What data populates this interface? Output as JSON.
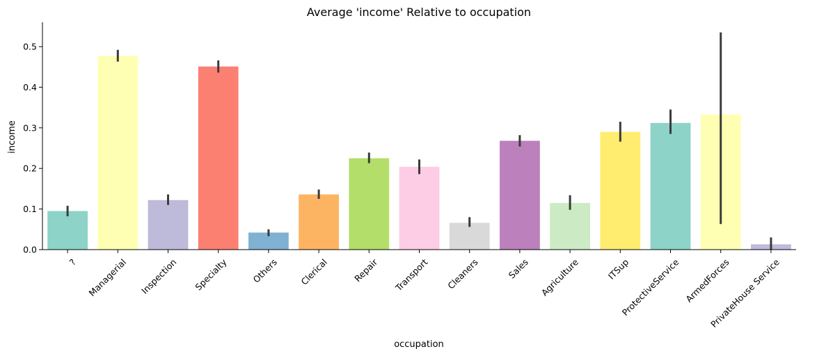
{
  "chart_data": {
    "type": "bar",
    "title": "Average 'income' Relative to occupation",
    "xlabel": "occupation",
    "ylabel": "income",
    "ylim": [
      0,
      0.56
    ],
    "yticks": [
      0.0,
      0.1,
      0.2,
      0.3,
      0.4,
      0.5
    ],
    "ytick_labels": [
      "0.0",
      "0.1",
      "0.2",
      "0.3",
      "0.4",
      "0.5"
    ],
    "categories": [
      "?",
      "Managerial",
      "Inspection",
      "Specialty",
      "Others",
      "Clerical",
      "Repair",
      "Transport",
      "Cleaners",
      "Sales",
      "Agriculture",
      "ITSup",
      "ProtectiveService",
      "ArmedForces",
      "PrivateHouse Service"
    ],
    "values": [
      0.095,
      0.477,
      0.122,
      0.451,
      0.042,
      0.136,
      0.225,
      0.204,
      0.066,
      0.268,
      0.115,
      0.29,
      0.312,
      0.333,
      0.013
    ],
    "error_low": [
      0.082,
      0.463,
      0.11,
      0.436,
      0.033,
      0.125,
      0.213,
      0.186,
      0.056,
      0.254,
      0.098,
      0.266,
      0.285,
      0.063,
      0.0
    ],
    "error_high": [
      0.108,
      0.492,
      0.136,
      0.466,
      0.05,
      0.148,
      0.239,
      0.222,
      0.08,
      0.282,
      0.134,
      0.315,
      0.345,
      0.535,
      0.03
    ],
    "colors": [
      "#8dd3c7",
      "#ffffb3",
      "#bebada",
      "#fb8072",
      "#80b1d3",
      "#fdb462",
      "#b3de69",
      "#fccde5",
      "#d9d9d9",
      "#bc80bd",
      "#ccebc5",
      "#ffed6f",
      "#8dd3c7",
      "#ffffb3",
      "#bebada"
    ],
    "grid": false,
    "legend": "none"
  }
}
